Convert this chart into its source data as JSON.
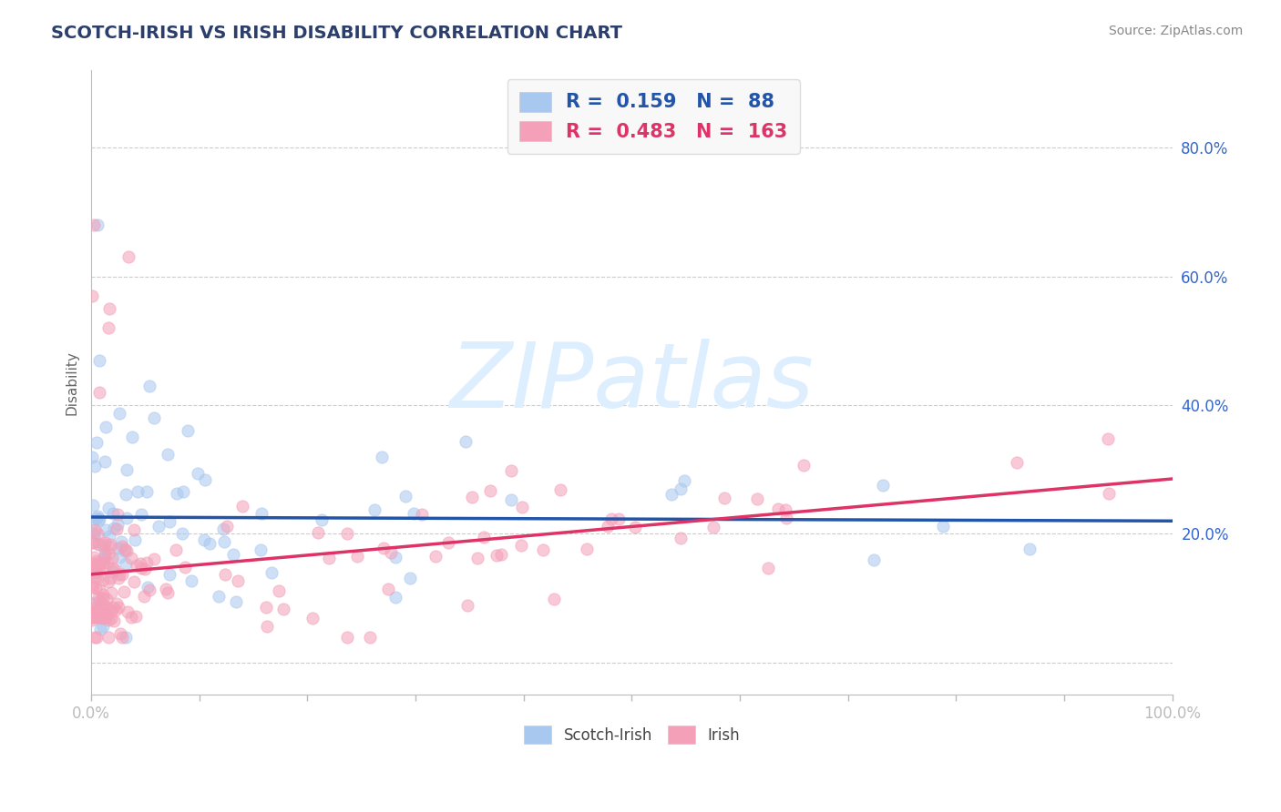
{
  "title": "SCOTCH-IRISH VS IRISH DISABILITY CORRELATION CHART",
  "source": "Source: ZipAtlas.com",
  "ylabel": "Disability",
  "watermark": "ZIPatlas",
  "scotch_irish": {
    "R": 0.159,
    "N": 88,
    "color": "#a8c8f0",
    "line_color": "#2255aa",
    "scatter_alpha": 0.55
  },
  "irish": {
    "R": 0.483,
    "N": 163,
    "color": "#f4a0b8",
    "line_color": "#dd3366",
    "scatter_alpha": 0.55
  },
  "xlim": [
    0.0,
    1.0
  ],
  "ylim": [
    -0.05,
    0.92
  ],
  "x_ticks": [
    0.0,
    0.1,
    0.2,
    0.3,
    0.4,
    0.5,
    0.6,
    0.7,
    0.8,
    0.9,
    1.0
  ],
  "x_tick_labels": [
    "0.0%",
    "",
    "",
    "",
    "",
    "",
    "",
    "",
    "",
    "",
    "100.0%"
  ],
  "y_ticks": [
    0.0,
    0.2,
    0.4,
    0.6,
    0.8
  ],
  "y_tick_labels": [
    "",
    "20.0%",
    "40.0%",
    "60.0%",
    "80.0%"
  ],
  "grid_color": "#cccccc",
  "bg_color": "#ffffff",
  "title_color": "#2c3e6b",
  "source_color": "#888888",
  "axis_color": "#bbbbbb",
  "tick_color": "#3366cc",
  "watermark_color": "#ddeeff",
  "legend_box_color": "#f8f8f8"
}
